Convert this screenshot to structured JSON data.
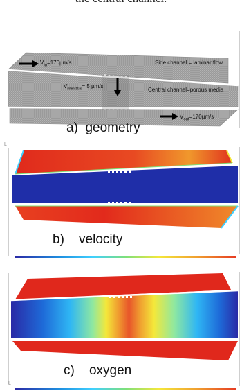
{
  "intro": {
    "text": "the central channel."
  },
  "panels": {
    "geometry": {
      "caption_letter": "a)",
      "caption_word": "geometry",
      "v_in_label": "V",
      "v_in_sub": "in",
      "v_in_value": "=170µm/s",
      "side_channel_text": "Side channel = laminar flow",
      "v_interstitial_label": "V",
      "v_interstitial_sub": "interstitial",
      "v_interstitial_value": "= 5 µm/s",
      "central_channel_text": "Central channel=porous media",
      "v_out_label": "V",
      "v_out_sub": "out",
      "v_out_value": "=170µm/s"
    },
    "velocity": {
      "caption_letter": "b)",
      "caption_word": "velocity",
      "side_color": "#e8281e",
      "center_color": "#1f2ea8"
    },
    "oxygen": {
      "caption_letter": "c)",
      "caption_word": "oxygen",
      "side_color": "#e0281c",
      "center_gradient": [
        "#2a2aa6",
        "#1e8fe0",
        "#3fd0ff",
        "#f4e83a",
        "#f0a030",
        "#e63a22",
        "#f0a030",
        "#f4e83a",
        "#3fd0ff",
        "#1e8fe0",
        "#2a2aa6"
      ]
    }
  },
  "colorbar": [
    "#2a2aa6",
    "#1e8fe0",
    "#3fd0ff",
    "#7ee07a",
    "#f4e83a",
    "#f0a030",
    "#e63a22"
  ]
}
